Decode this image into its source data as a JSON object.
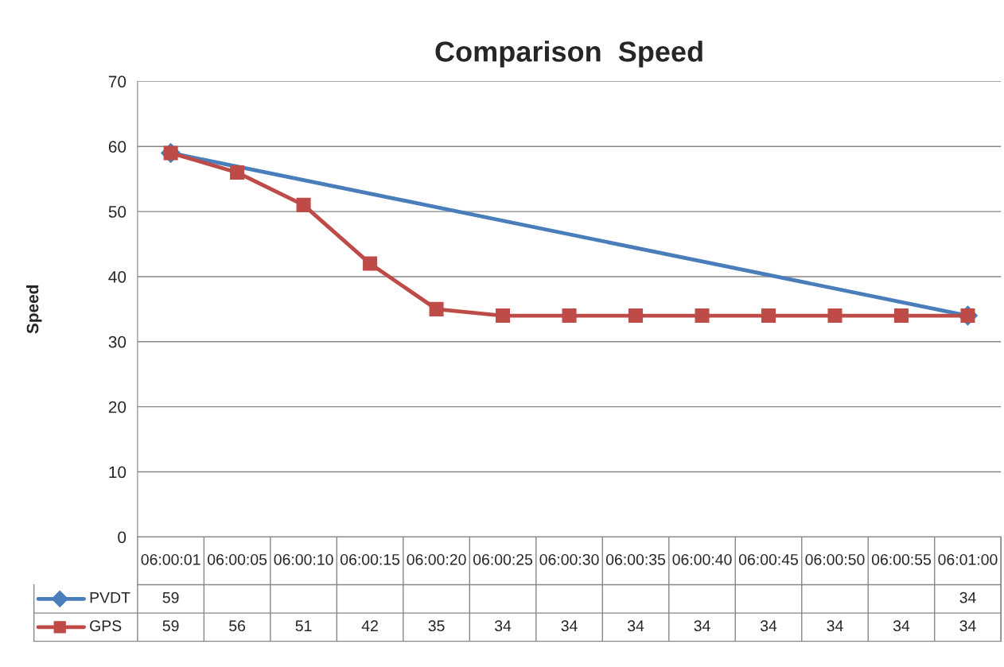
{
  "chart_data": {
    "type": "line",
    "title": "Comparison  Speed",
    "ylabel": "Speed",
    "categories": [
      "06:00:01",
      "06:00:05",
      "06:00:10",
      "06:00:15",
      "06:00:20",
      "06:00:25",
      "06:00:30",
      "06:00:35",
      "06:00:40",
      "06:00:45",
      "06:00:50",
      "06:00:55",
      "06:01:00"
    ],
    "series": [
      {
        "name": "PVDT",
        "color": "#4a7ebb",
        "marker": "diamond",
        "values": [
          59,
          null,
          null,
          null,
          null,
          null,
          null,
          null,
          null,
          null,
          null,
          null,
          34
        ]
      },
      {
        "name": "GPS",
        "color": "#be4b48",
        "marker": "square",
        "values": [
          59,
          56,
          51,
          42,
          35,
          34,
          34,
          34,
          34,
          34,
          34,
          34,
          34
        ]
      }
    ],
    "ylim": [
      0,
      70
    ],
    "yticks": [
      0,
      10,
      20,
      30,
      40,
      50,
      60,
      70
    ],
    "grid": "y",
    "legend": "bottom left",
    "data_labels": true
  }
}
